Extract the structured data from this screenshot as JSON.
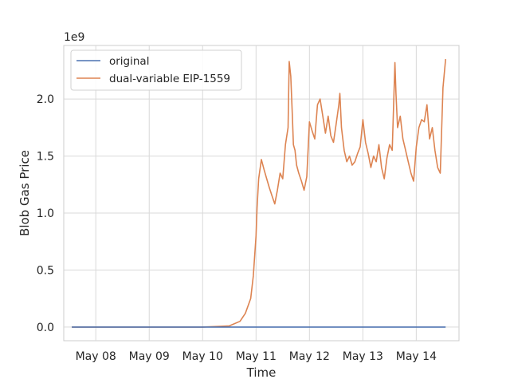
{
  "chart_data": {
    "type": "line",
    "xlabel": "Time",
    "ylabel": "Blob Gas Price",
    "y_offset_label": "1e9",
    "x_tick_labels": [
      "May 08",
      "May 09",
      "May 10",
      "May 11",
      "May 12",
      "May 13",
      "May 14"
    ],
    "x_tick_days": [
      8,
      9,
      10,
      11,
      12,
      13,
      14
    ],
    "y_tick_values": [
      0.0,
      0.5,
      1.0,
      1.5,
      2.0
    ],
    "y_tick_labels": [
      "0.0",
      "0.5",
      "1.0",
      "1.5",
      "2.0"
    ],
    "xlim_days": [
      7.4,
      14.8
    ],
    "ylim": [
      -0.12,
      2.47
    ],
    "grid": true,
    "legend_position": "upper-left",
    "series": [
      {
        "name": "original",
        "color": "#4c72b0",
        "x_days": [
          7.55,
          14.55
        ],
        "y": [
          0.0,
          0.0
        ]
      },
      {
        "name": "dual-variable EIP-1559",
        "color": "#dd8452",
        "x_days": [
          7.55,
          8.0,
          9.0,
          10.0,
          10.3,
          10.5,
          10.7,
          10.8,
          10.9,
          10.95,
          11.0,
          11.02,
          11.05,
          11.1,
          11.15,
          11.2,
          11.25,
          11.3,
          11.35,
          11.4,
          11.45,
          11.5,
          11.55,
          11.6,
          11.62,
          11.65,
          11.68,
          11.7,
          11.73,
          11.76,
          11.8,
          11.85,
          11.9,
          11.95,
          12.0,
          12.05,
          12.1,
          12.15,
          12.2,
          12.25,
          12.3,
          12.35,
          12.4,
          12.45,
          12.5,
          12.55,
          12.57,
          12.6,
          12.65,
          12.7,
          12.75,
          12.8,
          12.85,
          12.9,
          12.95,
          13.0,
          13.05,
          13.1,
          13.15,
          13.2,
          13.25,
          13.3,
          13.35,
          13.4,
          13.45,
          13.5,
          13.55,
          13.6,
          13.62,
          13.65,
          13.7,
          13.75,
          13.8,
          13.85,
          13.9,
          13.95,
          14.0,
          14.05,
          14.1,
          14.15,
          14.2,
          14.25,
          14.3,
          14.35,
          14.4,
          14.45,
          14.5,
          14.55
        ],
        "y": [
          0.0,
          0.0,
          0.0,
          0.0,
          0.005,
          0.01,
          0.05,
          0.12,
          0.25,
          0.45,
          0.8,
          1.05,
          1.3,
          1.47,
          1.38,
          1.3,
          1.22,
          1.15,
          1.08,
          1.2,
          1.35,
          1.3,
          1.6,
          1.75,
          2.33,
          2.2,
          1.85,
          1.6,
          1.55,
          1.42,
          1.35,
          1.28,
          1.2,
          1.32,
          1.8,
          1.72,
          1.65,
          1.95,
          2.0,
          1.85,
          1.7,
          1.85,
          1.68,
          1.62,
          1.78,
          1.95,
          2.05,
          1.75,
          1.55,
          1.45,
          1.5,
          1.42,
          1.45,
          1.52,
          1.58,
          1.82,
          1.62,
          1.52,
          1.4,
          1.5,
          1.45,
          1.6,
          1.4,
          1.3,
          1.48,
          1.6,
          1.55,
          2.32,
          2.05,
          1.75,
          1.85,
          1.65,
          1.55,
          1.45,
          1.35,
          1.28,
          1.58,
          1.75,
          1.82,
          1.8,
          1.95,
          1.65,
          1.75,
          1.55,
          1.4,
          1.35,
          2.1,
          2.35
        ]
      }
    ]
  }
}
